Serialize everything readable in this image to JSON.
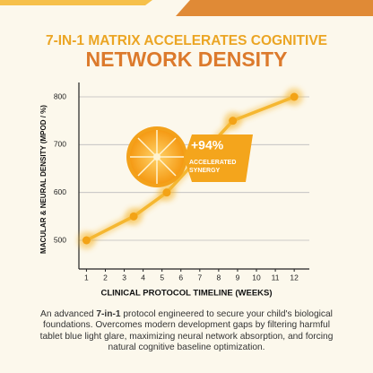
{
  "chart_data": {
    "type": "line",
    "title": "7-IN-1 MATRIX ACCELERATES COGNITIVE",
    "subtitle": "NETWORK DENSITY",
    "x_label": "CLINICAL PROTOCOL TIMELINE (WEEKS)",
    "y_label": "MACULAR & NEURAL DENSITY (MPOD / %)",
    "x": [
      1,
      3.5,
      5.25,
      8.75,
      12
    ],
    "values": [
      500,
      550,
      600,
      750,
      800
    ],
    "color": "#f5b731",
    "xlim": [
      0.6,
      12.8
    ],
    "xticks": [
      1,
      2,
      3,
      4,
      5,
      6,
      7,
      8,
      9,
      10,
      11,
      12
    ],
    "ylim": [
      440,
      830
    ],
    "yticks": [
      500,
      600,
      700,
      800
    ],
    "grid": true,
    "annotation": {
      "value": "+94%",
      "lines": [
        "ACCELERATED",
        "SYNERGY"
      ]
    },
    "description": [
      "An advanced ",
      "7-in-1",
      " protocol engineered to secure your child's biological foundations. Overcomes modern development gaps by filtering harmful tablet blue light glare, maximizing neural network absorption, and forcing natural cognitive baseline optimization."
    ]
  }
}
